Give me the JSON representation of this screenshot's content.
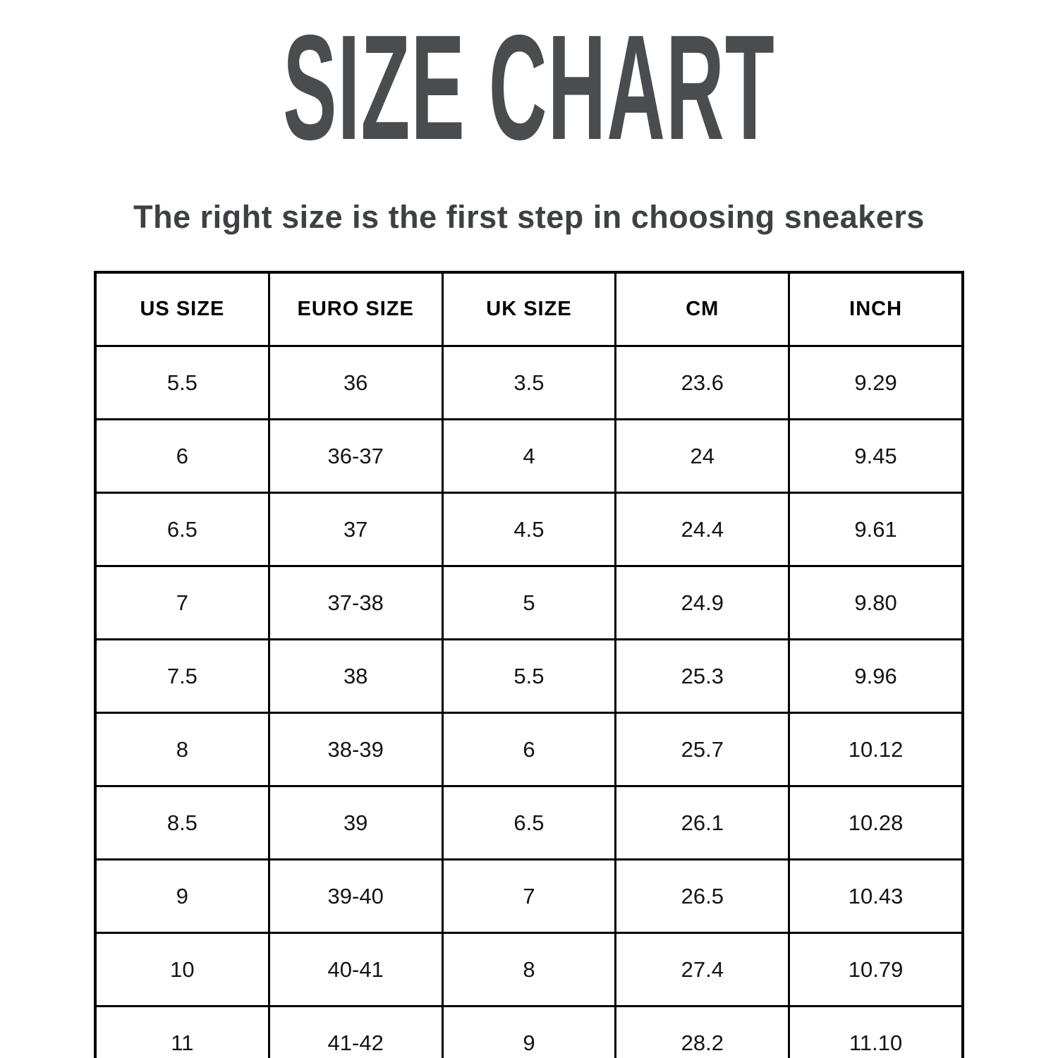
{
  "page": {
    "title": "SIZE CHART",
    "subtitle": "The right size is the first step in choosing sneakers"
  },
  "colors": {
    "background": "#ffffff",
    "title_text": "#4a4d4f",
    "subtitle_text": "#3d4144",
    "table_border": "#000000",
    "cell_text": "#141414"
  },
  "chart_data": {
    "type": "table",
    "title": "SIZE CHART",
    "subtitle": "The right size is the first step in choosing sneakers",
    "columns": [
      "US SIZE",
      "EURO SIZE",
      "UK SIZE",
      "CM",
      "INCH"
    ],
    "rows": [
      [
        "5.5",
        "36",
        "3.5",
        "23.6",
        "9.29"
      ],
      [
        "6",
        "36-37",
        "4",
        "24",
        "9.45"
      ],
      [
        "6.5",
        "37",
        "4.5",
        "24.4",
        "9.61"
      ],
      [
        "7",
        "37-38",
        "5",
        "24.9",
        "9.80"
      ],
      [
        "7.5",
        "38",
        "5.5",
        "25.3",
        "9.96"
      ],
      [
        "8",
        "38-39",
        "6",
        "25.7",
        "10.12"
      ],
      [
        "8.5",
        "39",
        "6.5",
        "26.1",
        "10.28"
      ],
      [
        "9",
        "39-40",
        "7",
        "26.5",
        "10.43"
      ],
      [
        "10",
        "40-41",
        "8",
        "27.4",
        "10.79"
      ],
      [
        "11",
        "41-42",
        "9",
        "28.2",
        "11.10"
      ]
    ]
  }
}
